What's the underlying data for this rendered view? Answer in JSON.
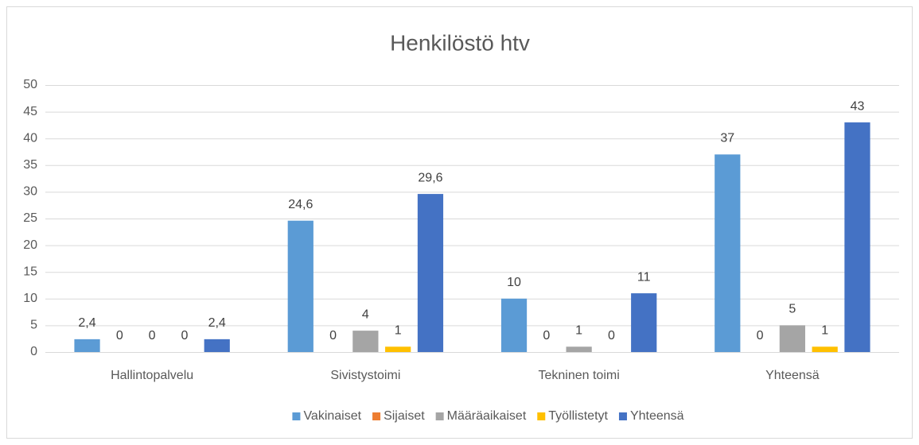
{
  "chart_data": {
    "type": "bar",
    "title": "Henkilöstö htv",
    "categories": [
      "Hallintopalvelu",
      "Sivistystoimi",
      "Tekninen toimi",
      "Yhteensä"
    ],
    "series": [
      {
        "name": "Vakinaiset",
        "color": "#5b9bd5",
        "values": [
          2.4,
          24.6,
          10,
          37
        ],
        "value_labels": [
          "2,4",
          "24,6",
          "10",
          "37"
        ]
      },
      {
        "name": "Sijaiset",
        "color": "#ed7d31",
        "values": [
          0,
          0,
          0,
          0
        ],
        "value_labels": [
          "0",
          "0",
          "0",
          "0"
        ]
      },
      {
        "name": "Määräaikaiset",
        "color": "#a5a5a5",
        "values": [
          0,
          4,
          1,
          5
        ],
        "value_labels": [
          "0",
          "4",
          "1",
          "5"
        ]
      },
      {
        "name": "Työllistetyt",
        "color": "#ffc000",
        "values": [
          0,
          1,
          0,
          1
        ],
        "value_labels": [
          "0",
          "1",
          "0",
          "1"
        ]
      },
      {
        "name": "Yhteensä",
        "color": "#4472c4",
        "values": [
          2.4,
          29.6,
          11,
          43
        ],
        "value_labels": [
          "2,4",
          "29,6",
          "11",
          "43"
        ]
      }
    ],
    "ylim": [
      0,
      50
    ],
    "yticks": [
      0,
      5,
      10,
      15,
      20,
      25,
      30,
      35,
      40,
      45,
      50
    ],
    "grid": true,
    "legend": "bottom"
  }
}
